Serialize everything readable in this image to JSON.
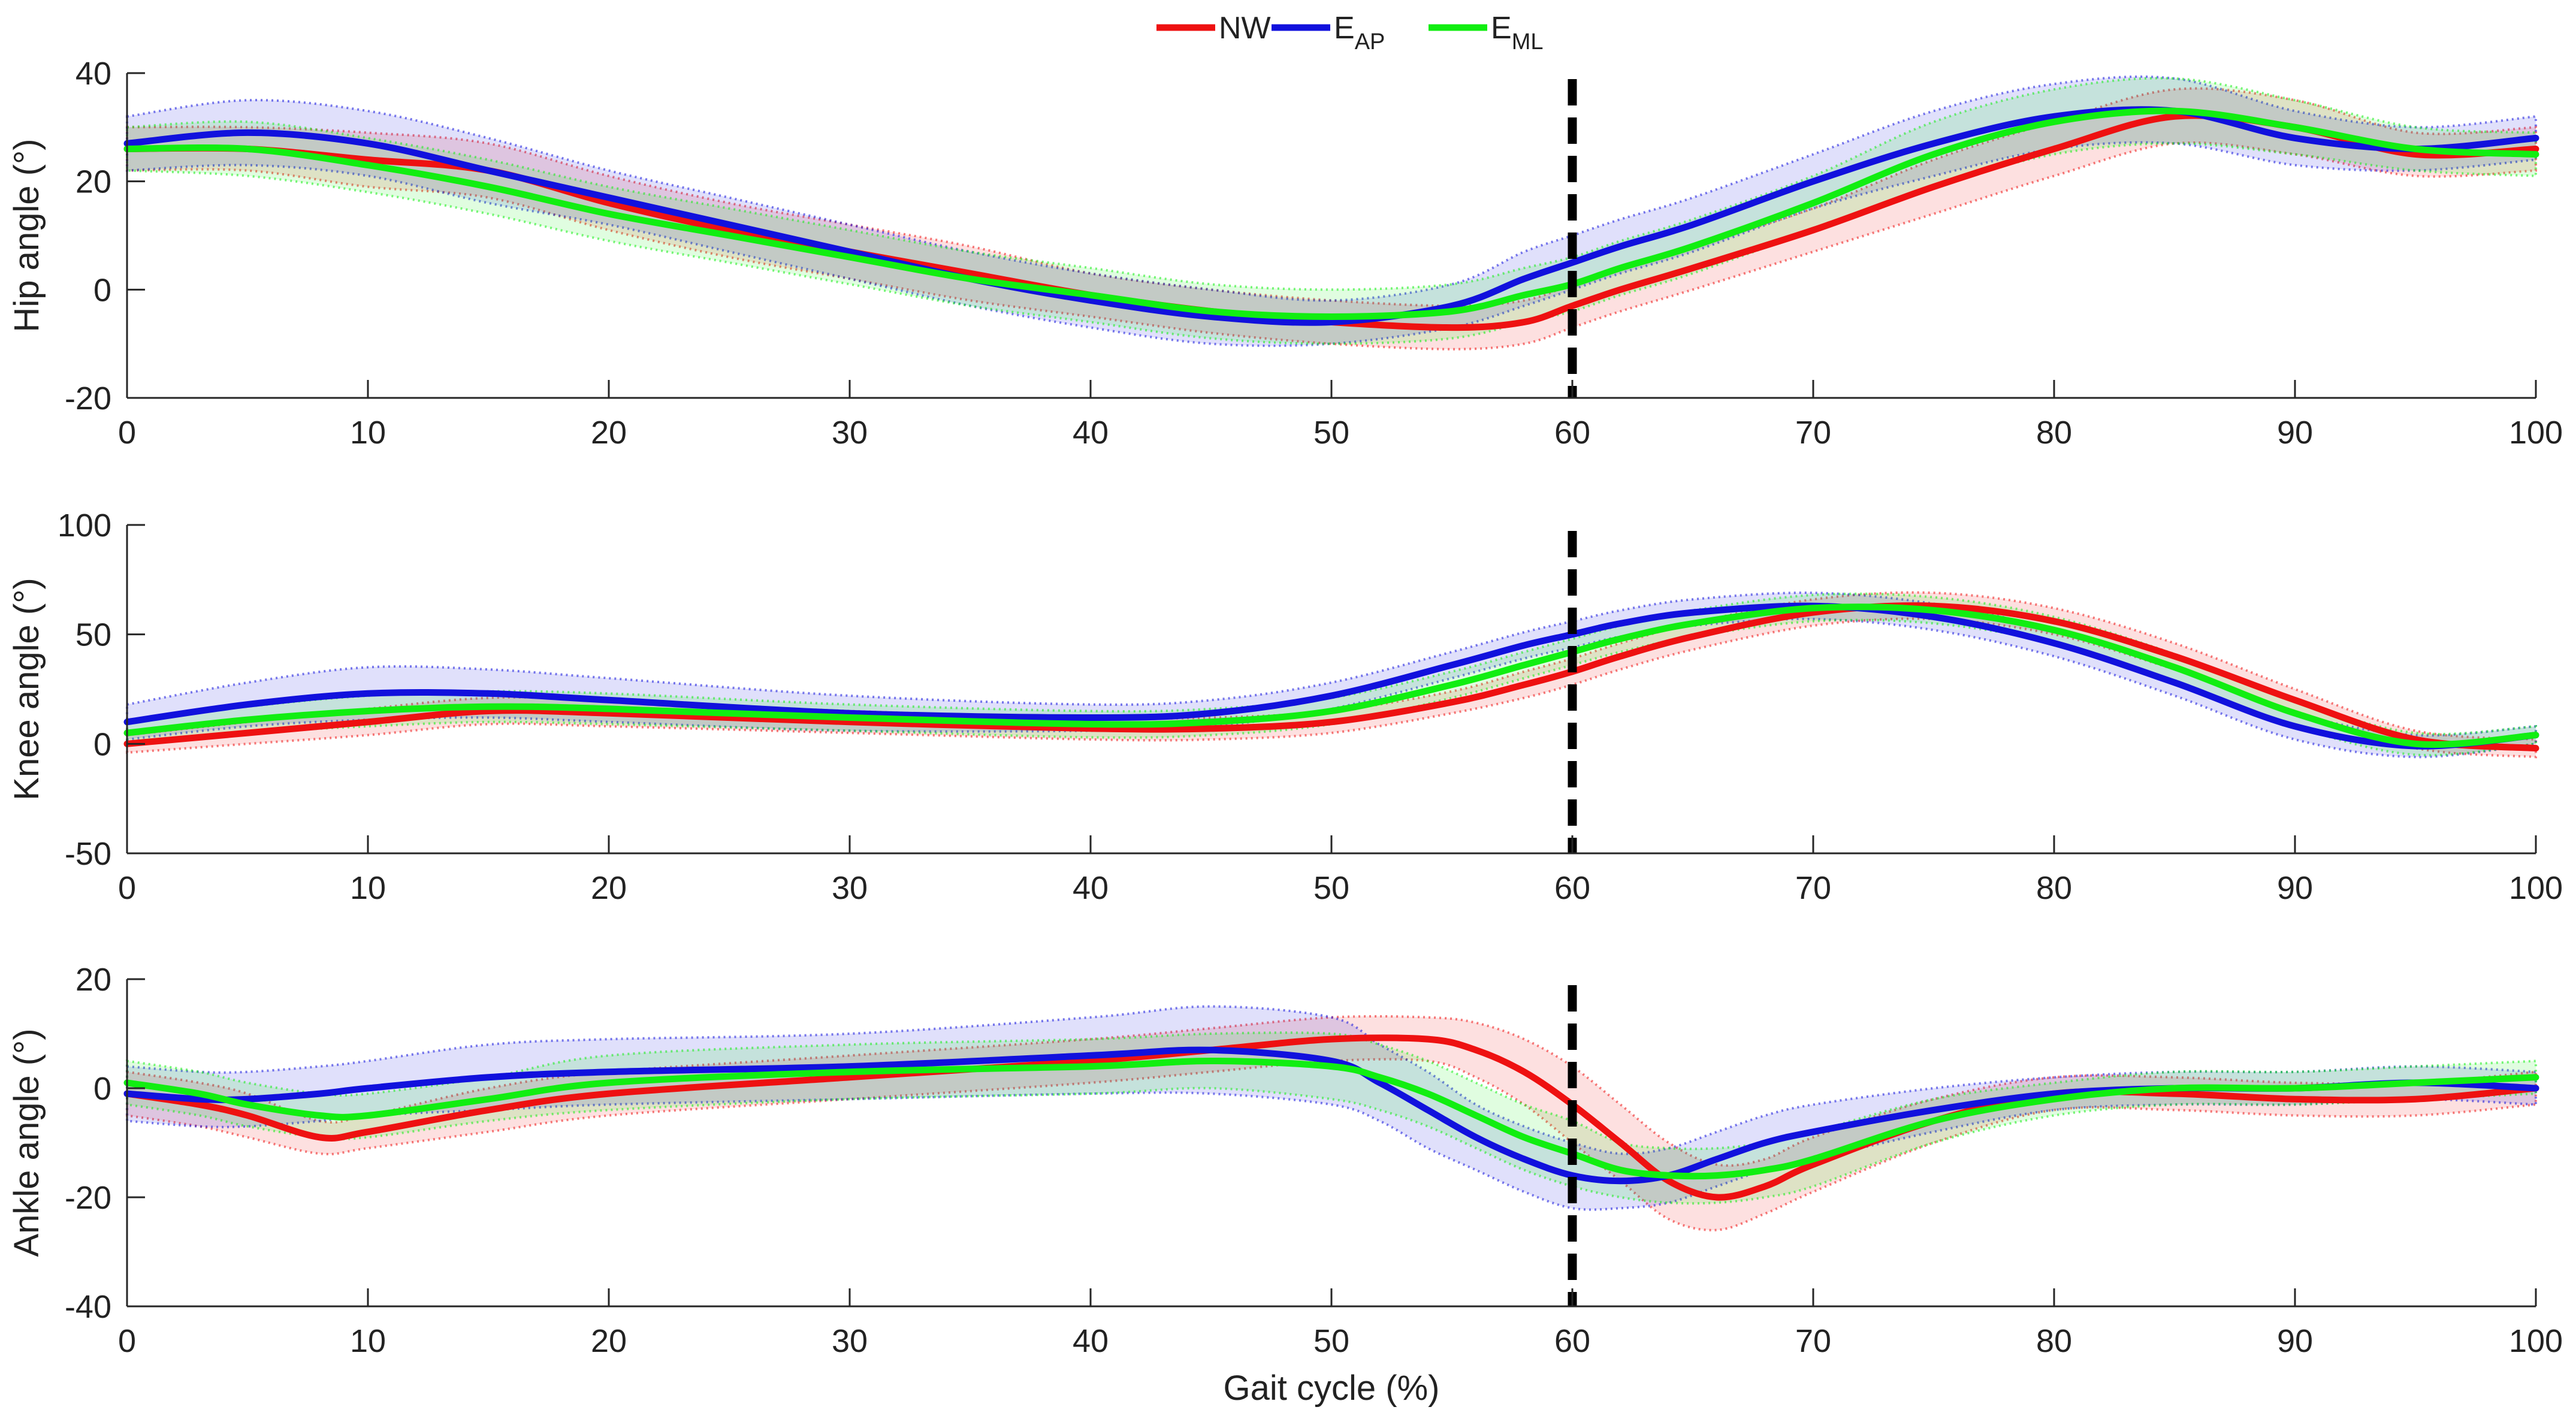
{
  "chart_data": {
    "type": "line",
    "xlabel": "Gait cycle (%)",
    "xlim": [
      0,
      100
    ],
    "xticks": [
      0,
      10,
      20,
      30,
      40,
      50,
      60,
      70,
      80,
      90,
      100
    ],
    "vline_x": 60,
    "legend": [
      {
        "id": "NW",
        "main": "NW",
        "sub": "",
        "color": "#ee1111"
      },
      {
        "id": "EAP",
        "main": "E",
        "sub": "AP",
        "color": "#1111dd"
      },
      {
        "id": "EML",
        "main": "E",
        "sub": "ML",
        "color": "#11ee11"
      }
    ],
    "panels": [
      {
        "ylabel": "Hip angle (°)",
        "ylim": [
          -20,
          40
        ],
        "yticks": [
          -20,
          0,
          20,
          40
        ],
        "series": [
          {
            "name": "NW",
            "color": "#ee1111",
            "x": [
              0,
              5,
              10,
              15,
              20,
              25,
              30,
              35,
              40,
              45,
              50,
              55,
              58,
              60,
              62,
              65,
              70,
              75,
              80,
              85,
              90,
              95,
              100
            ],
            "y": [
              26,
              26,
              24,
              22,
              16,
              11,
              7,
              3,
              -1,
              -4,
              -6,
              -7,
              -6,
              -3,
              0,
              4,
              11,
              19,
              26,
              32,
              30,
              25,
              26
            ],
            "sd": [
              4,
              4,
              5,
              5,
              5,
              5,
              5,
              5,
              4,
              4,
              4,
              4,
              4,
              4,
              4,
              4,
              4,
              5,
              5,
              5,
              5,
              4,
              4
            ]
          },
          {
            "name": "EAP",
            "color": "#1111dd",
            "x": [
              0,
              5,
              10,
              15,
              20,
              25,
              30,
              35,
              40,
              45,
              50,
              55,
              58,
              60,
              62,
              65,
              70,
              75,
              80,
              85,
              90,
              95,
              100
            ],
            "y": [
              27,
              29,
              27,
              22,
              17,
              12,
              7,
              2,
              -2,
              -5,
              -6,
              -3,
              2,
              5,
              8,
              12,
              20,
              27,
              32,
              33,
              28,
              26,
              28
            ],
            "sd": [
              5,
              6,
              6,
              6,
              5,
              5,
              5,
              5,
              5,
              5,
              4,
              4,
              5,
              5,
              5,
              5,
              5,
              6,
              6,
              6,
              5,
              4,
              4
            ]
          },
          {
            "name": "EML",
            "color": "#11ee11",
            "x": [
              0,
              5,
              10,
              15,
              20,
              25,
              30,
              35,
              40,
              45,
              50,
              55,
              58,
              60,
              62,
              65,
              70,
              75,
              80,
              85,
              90,
              95,
              100
            ],
            "y": [
              26,
              26,
              23,
              19,
              14,
              10,
              6,
              2,
              -1,
              -4,
              -5,
              -4,
              -1,
              1,
              4,
              8,
              16,
              25,
              31,
              33,
              30,
              26,
              25
            ],
            "sd": [
              4,
              5,
              5,
              5,
              5,
              5,
              5,
              5,
              5,
              5,
              5,
              5,
              5,
              5,
              5,
              5,
              5,
              6,
              6,
              6,
              5,
              4,
              4
            ]
          }
        ]
      },
      {
        "ylabel": "Knee angle (°)",
        "ylim": [
          -50,
          100
        ],
        "yticks": [
          -50,
          0,
          50,
          100
        ],
        "series": [
          {
            "name": "NW",
            "color": "#ee1111",
            "x": [
              0,
              5,
              10,
              15,
              20,
              30,
              40,
              45,
              50,
              55,
              58,
              60,
              62,
              65,
              70,
              75,
              80,
              85,
              90,
              95,
              100
            ],
            "y": [
              0,
              5,
              10,
              15,
              14,
              10,
              7,
              7,
              10,
              19,
              27,
              33,
              40,
              49,
              60,
              63,
              56,
              40,
              20,
              2,
              -2
            ],
            "sd": [
              4,
              5,
              6,
              6,
              6,
              5,
              5,
              5,
              5,
              5,
              6,
              6,
              6,
              6,
              6,
              6,
              6,
              6,
              5,
              4,
              4
            ]
          },
          {
            "name": "EAP",
            "color": "#1111dd",
            "x": [
              0,
              5,
              10,
              15,
              20,
              30,
              40,
              45,
              50,
              55,
              58,
              60,
              62,
              65,
              70,
              75,
              80,
              85,
              90,
              95,
              100
            ],
            "y": [
              10,
              18,
              23,
              23,
              20,
              14,
              12,
              14,
              22,
              36,
              45,
              50,
              55,
              60,
              63,
              58,
              46,
              28,
              8,
              -1,
              4
            ],
            "sd": [
              8,
              10,
              12,
              11,
              10,
              8,
              6,
              6,
              6,
              6,
              6,
              6,
              6,
              6,
              6,
              6,
              6,
              6,
              6,
              5,
              4
            ]
          },
          {
            "name": "EML",
            "color": "#11ee11",
            "x": [
              0,
              5,
              10,
              15,
              20,
              30,
              40,
              45,
              50,
              55,
              58,
              60,
              62,
              65,
              70,
              75,
              80,
              85,
              90,
              95,
              100
            ],
            "y": [
              5,
              11,
              15,
              17,
              16,
              12,
              9,
              10,
              15,
              27,
              36,
              42,
              48,
              55,
              62,
              61,
              52,
              35,
              14,
              0,
              4
            ],
            "sd": [
              5,
              6,
              7,
              7,
              7,
              6,
              6,
              6,
              6,
              6,
              6,
              6,
              6,
              6,
              6,
              6,
              6,
              6,
              6,
              5,
              4
            ]
          }
        ]
      },
      {
        "ylabel": "Ankle angle (°)",
        "ylim": [
          -40,
          20
        ],
        "yticks": [
          -40,
          -20,
          0,
          20
        ],
        "series": [
          {
            "name": "NW",
            "color": "#ee1111",
            "x": [
              0,
              3,
              5,
              8,
              10,
              15,
              20,
              30,
              40,
              45,
              50,
              54,
              56,
              58,
              60,
              62,
              64,
              66,
              68,
              70,
              75,
              80,
              85,
              90,
              95,
              100
            ],
            "y": [
              -1,
              -3,
              -5,
              -9,
              -8,
              -4,
              -1,
              2,
              5,
              7,
              9,
              9,
              7,
              3,
              -3,
              -10,
              -17,
              -20,
              -18,
              -14,
              -6,
              -1,
              -1,
              -2,
              -2,
              0
            ],
            "sd": [
              4,
              4,
              4,
              3,
              3,
              4,
              4,
              4,
              4,
              4,
              4,
              4,
              5,
              6,
              7,
              7,
              7,
              6,
              5,
              5,
              4,
              3,
              3,
              3,
              3,
              3
            ]
          },
          {
            "name": "EAP",
            "color": "#1111dd",
            "x": [
              0,
              3,
              5,
              8,
              10,
              15,
              20,
              30,
              40,
              45,
              50,
              52,
              54,
              56,
              58,
              60,
              62,
              64,
              66,
              68,
              70,
              75,
              80,
              85,
              90,
              95,
              100
            ],
            "y": [
              -1,
              -2,
              -2,
              -1,
              0,
              2,
              3,
              4,
              6,
              7,
              5,
              1,
              -4,
              -9,
              -13,
              -16,
              -17,
              -16,
              -13,
              -10,
              -8,
              -4,
              -1,
              0,
              0,
              1,
              0
            ],
            "sd": [
              5,
              5,
              5,
              5,
              5,
              6,
              6,
              6,
              7,
              8,
              8,
              7,
              7,
              6,
              6,
              6,
              5,
              5,
              5,
              5,
              5,
              4,
              3,
              3,
              3,
              3,
              3
            ]
          },
          {
            "name": "EML",
            "color": "#11ee11",
            "x": [
              0,
              3,
              5,
              8,
              10,
              15,
              20,
              30,
              40,
              45,
              50,
              52,
              54,
              56,
              58,
              60,
              62,
              64,
              66,
              68,
              70,
              75,
              80,
              85,
              90,
              95,
              100
            ],
            "y": [
              1,
              -1,
              -3,
              -5,
              -5,
              -2,
              1,
              3,
              4,
              5,
              4,
              2,
              -1,
              -5,
              -9,
              -12,
              -15,
              -16,
              -16,
              -15,
              -13,
              -6,
              -2,
              0,
              0,
              1,
              2
            ],
            "sd": [
              4,
              4,
              4,
              4,
              4,
              4,
              5,
              5,
              5,
              5,
              6,
              6,
              6,
              6,
              6,
              6,
              5,
              5,
              5,
              5,
              5,
              4,
              3,
              3,
              3,
              3,
              3
            ]
          }
        ]
      }
    ]
  }
}
